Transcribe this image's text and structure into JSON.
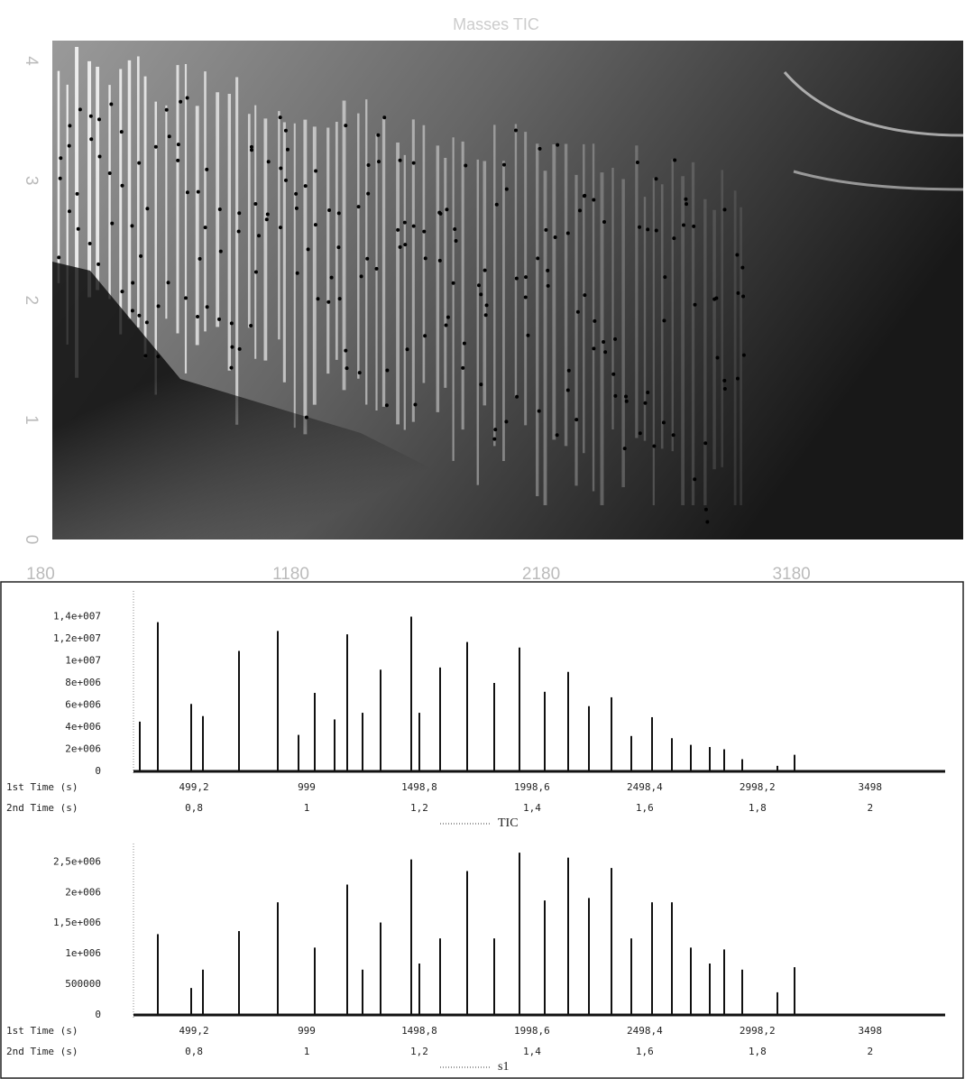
{
  "chart_data": [
    {
      "type": "heatmap",
      "title": "Masses TIC",
      "xlim": [
        227,
        3866
      ],
      "xticks": [
        180,
        1180,
        2180,
        3180
      ],
      "ylim": [
        0,
        4.17
      ],
      "yticks": [
        0,
        1,
        2,
        3,
        4
      ]
    },
    {
      "type": "spike",
      "xlabels": [
        "1st Time (s)",
        "2nd Time (s)"
      ],
      "legend": "TIC",
      "color": "#111",
      "xlim": [
        231,
        3831
      ],
      "xticks": [
        {
          "value": 499.2,
          "label": "499,2"
        },
        999,
        {
          "value": 1498.8,
          "label": "1498,8"
        },
        {
          "value": 1998.6,
          "label": "1998,6"
        },
        {
          "value": 2498.4,
          "label": "2498,4"
        },
        {
          "value": 2998.2,
          "label": "2998,2"
        },
        3498
      ],
      "x2ticks": [
        "0,8",
        "1",
        "1,2",
        "1,4",
        "1,6",
        "1,8",
        "2"
      ],
      "ylim": [
        0,
        16000000
      ],
      "yticks": [
        0,
        {
          "value": 2000000,
          "label": "2e+006"
        },
        {
          "value": 4000000,
          "label": "4e+006"
        },
        {
          "value": 6000000,
          "label": "6e+006"
        },
        {
          "value": 8000000,
          "label": "8e+006"
        },
        {
          "value": 10000000,
          "label": "1e+007"
        },
        {
          "value": 12000000,
          "label": "1,2e+007"
        },
        {
          "value": 14000000,
          "label": "1,4e+007"
        }
      ],
      "x": [
        259,
        339,
        487,
        539,
        699,
        871,
        963,
        1035,
        1123,
        1179,
        1247,
        1327,
        1463,
        1499,
        1591,
        1711,
        1831,
        1943,
        2055,
        2159,
        2251,
        2351,
        2439,
        2531,
        2619,
        2703,
        2787,
        2851,
        2931,
        3087,
        3163
      ],
      "values": [
        4500000,
        13500000,
        6100000,
        5000000,
        10900000,
        12700000,
        3300000,
        7100000,
        4700000,
        12400000,
        5300000,
        9200000,
        14000000,
        5300000,
        9400000,
        11700000,
        8000000,
        11200000,
        7200000,
        9000000,
        5900000,
        6700000,
        3200000,
        4900000,
        3000000,
        2400000,
        2200000,
        2000000,
        1100000,
        500000,
        1500000
      ]
    },
    {
      "type": "spike",
      "xlabels": [
        "1st Time (s)",
        "2nd Time (s)"
      ],
      "legend": "s1",
      "color": "#111",
      "xlim": [
        231,
        3831
      ],
      "xticks": [
        {
          "value": 499.2,
          "label": "499,2"
        },
        999,
        {
          "value": 1498.8,
          "label": "1498,8"
        },
        {
          "value": 1998.6,
          "label": "1998,6"
        },
        {
          "value": 2498.4,
          "label": "2498,4"
        },
        {
          "value": 2998.2,
          "label": "2998,2"
        },
        3498
      ],
      "x2ticks": [
        "0,8",
        "1",
        "1,2",
        "1,4",
        "1,6",
        "1,8",
        "2"
      ],
      "ylim": [
        0,
        2800000
      ],
      "yticks": [
        0,
        500000,
        {
          "value": 1000000,
          "label": "1e+006"
        },
        {
          "value": 1500000,
          "label": "1,5e+006"
        },
        {
          "value": 2000000,
          "label": "2e+006"
        },
        {
          "value": 2500000,
          "label": "2,5e+006"
        }
      ],
      "x": [
        339,
        487,
        539,
        699,
        871,
        1035,
        1179,
        1247,
        1327,
        1463,
        1499,
        1591,
        1711,
        1831,
        1943,
        2055,
        2159,
        2251,
        2351,
        2439,
        2531,
        2619,
        2703,
        2787,
        2851,
        2931,
        3087,
        3163
      ],
      "values": [
        1320000,
        440000,
        740000,
        1370000,
        1840000,
        1100000,
        2130000,
        740000,
        1510000,
        2540000,
        840000,
        1250000,
        2350000,
        1250000,
        2650000,
        1870000,
        2570000,
        1910000,
        2400000,
        1250000,
        1840000,
        1840000,
        1100000,
        840000,
        1070000,
        740000,
        370000,
        780000
      ]
    }
  ]
}
